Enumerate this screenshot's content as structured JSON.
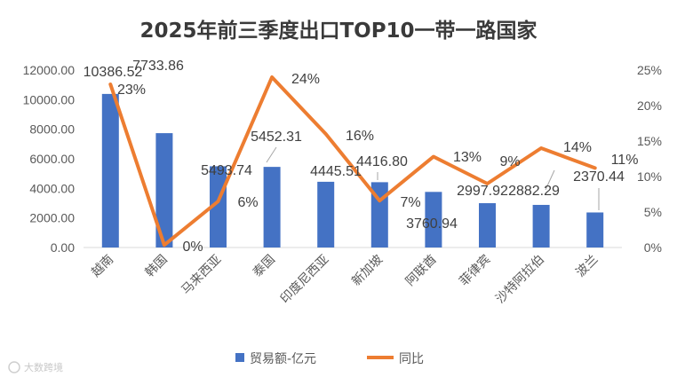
{
  "chart_data": {
    "type": "bar",
    "title": "2025年前三季度出口TOP10一带一路国家",
    "categories": [
      "越南",
      "韩国",
      "马来西亚",
      "泰国",
      "印度尼西亚",
      "新加坡",
      "阿联酋",
      "菲律宾",
      "沙特阿拉伯",
      "波兰"
    ],
    "series": [
      {
        "name": "贸易额-亿元",
        "type": "bar",
        "axis": "left",
        "color": "#4472c4",
        "values": [
          10386.52,
          7733.86,
          5493.74,
          5452.31,
          4445.51,
          4416.8,
          3760.94,
          2997.92,
          2882.29,
          2370.44
        ],
        "labels": [
          "10386.52",
          "7733.86",
          "5493.74",
          "5452.31",
          "4445.51",
          "4416.80",
          "3760.94",
          "2997.92",
          "2882.29",
          "2370.44"
        ]
      },
      {
        "name": "同比",
        "type": "line",
        "axis": "right",
        "color": "#ed7d31",
        "values": [
          0.23,
          0.0035,
          0.065,
          0.24,
          0.16,
          0.066,
          0.128,
          0.09,
          0.14,
          0.112
        ],
        "labels": [
          "23%",
          "0%",
          "6%",
          "24%",
          "16%",
          "7%",
          "13%",
          "9%",
          "14%",
          "11%"
        ]
      }
    ],
    "y_left": {
      "min": 0,
      "max": 12000,
      "ticks": [
        "0.00",
        "2000.00",
        "4000.00",
        "6000.00",
        "8000.00",
        "10000.00",
        "12000.00"
      ]
    },
    "y_right": {
      "min": 0,
      "max": 0.25,
      "ticks": [
        "0%",
        "5%",
        "10%",
        "15%",
        "20%",
        "25%"
      ]
    },
    "grid": false,
    "legend_position": "bottom",
    "watermark": "大数跨境"
  }
}
